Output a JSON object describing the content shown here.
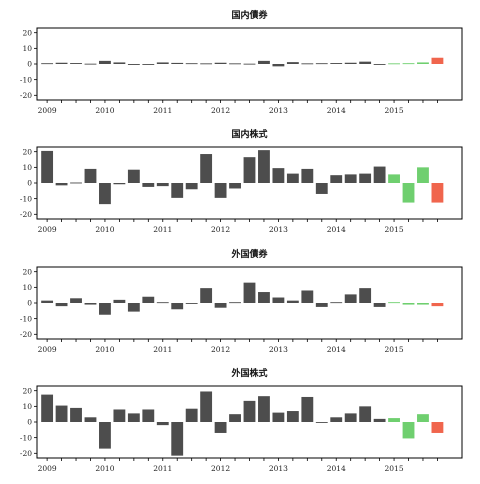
{
  "chart_data": [
    {
      "type": "bar",
      "title": "国内債券",
      "xlabel": "",
      "ylabel": "",
      "ylim": [
        -23,
        23
      ],
      "yticks": [
        20,
        10,
        0,
        -10,
        -20
      ],
      "year_labels": [
        "2009",
        "2010",
        "2011",
        "2012",
        "2013",
        "2014",
        "2015"
      ],
      "categories": [
        "2009Q1",
        "2009Q2",
        "2009Q3",
        "2009Q4",
        "2010Q1",
        "2010Q2",
        "2010Q3",
        "2010Q4",
        "2011Q1",
        "2011Q2",
        "2011Q3",
        "2011Q4",
        "2012Q1",
        "2012Q2",
        "2012Q3",
        "2012Q4",
        "2013Q1",
        "2013Q2",
        "2013Q3",
        "2013Q4",
        "2014Q1",
        "2014Q2",
        "2014Q3",
        "2014Q4",
        "2015Q1",
        "2015Q2",
        "2015Q3",
        "2015Q4"
      ],
      "values": [
        0.5,
        0.8,
        0.6,
        0.2,
        2.0,
        1.0,
        -0.6,
        -0.3,
        1.0,
        0.7,
        0.5,
        0.4,
        0.8,
        0.4,
        0.2,
        2.0,
        -1.5,
        1.2,
        0.4,
        0.5,
        0.6,
        0.8,
        1.5,
        -0.4,
        0.4,
        0.5,
        1.0,
        4.0
      ],
      "colors": [
        "#4d4d4d",
        "#4d4d4d",
        "#4d4d4d",
        "#4d4d4d",
        "#4d4d4d",
        "#4d4d4d",
        "#4d4d4d",
        "#4d4d4d",
        "#4d4d4d",
        "#4d4d4d",
        "#4d4d4d",
        "#4d4d4d",
        "#4d4d4d",
        "#4d4d4d",
        "#4d4d4d",
        "#4d4d4d",
        "#4d4d4d",
        "#4d4d4d",
        "#4d4d4d",
        "#4d4d4d",
        "#4d4d4d",
        "#4d4d4d",
        "#4d4d4d",
        "#4d4d4d",
        "#6fcf6f",
        "#6fcf6f",
        "#6fcf6f",
        "#f0654d"
      ]
    },
    {
      "type": "bar",
      "title": "国内株式",
      "xlabel": "",
      "ylabel": "",
      "ylim": [
        -23,
        23
      ],
      "yticks": [
        20,
        10,
        0,
        -10,
        -20
      ],
      "year_labels": [
        "2009",
        "2010",
        "2011",
        "2012",
        "2013",
        "2014",
        "2015"
      ],
      "categories": [
        "2009Q1",
        "2009Q2",
        "2009Q3",
        "2009Q4",
        "2010Q1",
        "2010Q2",
        "2010Q3",
        "2010Q4",
        "2011Q1",
        "2011Q2",
        "2011Q3",
        "2011Q4",
        "2012Q1",
        "2012Q2",
        "2012Q3",
        "2012Q4",
        "2013Q1",
        "2013Q2",
        "2013Q3",
        "2013Q4",
        "2014Q1",
        "2014Q2",
        "2014Q3",
        "2014Q4",
        "2015Q1",
        "2015Q2",
        "2015Q3",
        "2015Q4"
      ],
      "values": [
        20.5,
        -1.5,
        0.3,
        9.0,
        -13.5,
        -0.8,
        8.5,
        -2.5,
        -2.0,
        -9.5,
        -4.0,
        18.5,
        -9.5,
        -3.5,
        16.5,
        21.0,
        9.5,
        6.0,
        9.0,
        -7.0,
        5.0,
        5.5,
        6.0,
        10.5,
        5.5,
        -12.5,
        10.0,
        -12.5
      ],
      "colors": [
        "#4d4d4d",
        "#4d4d4d",
        "#4d4d4d",
        "#4d4d4d",
        "#4d4d4d",
        "#4d4d4d",
        "#4d4d4d",
        "#4d4d4d",
        "#4d4d4d",
        "#4d4d4d",
        "#4d4d4d",
        "#4d4d4d",
        "#4d4d4d",
        "#4d4d4d",
        "#4d4d4d",
        "#4d4d4d",
        "#4d4d4d",
        "#4d4d4d",
        "#4d4d4d",
        "#4d4d4d",
        "#4d4d4d",
        "#4d4d4d",
        "#4d4d4d",
        "#4d4d4d",
        "#6fcf6f",
        "#6fcf6f",
        "#6fcf6f",
        "#f0654d"
      ]
    },
    {
      "type": "bar",
      "title": "外国債券",
      "xlabel": "",
      "ylabel": "",
      "ylim": [
        -23,
        23
      ],
      "yticks": [
        20,
        10,
        0,
        -10,
        -20
      ],
      "year_labels": [
        "2009",
        "2010",
        "2011",
        "2012",
        "2013",
        "2014",
        "2015"
      ],
      "categories": [
        "2009Q1",
        "2009Q2",
        "2009Q3",
        "2009Q4",
        "2010Q1",
        "2010Q2",
        "2010Q3",
        "2010Q4",
        "2011Q1",
        "2011Q2",
        "2011Q3",
        "2011Q4",
        "2012Q1",
        "2012Q2",
        "2012Q3",
        "2012Q4",
        "2013Q1",
        "2013Q2",
        "2013Q3",
        "2013Q4",
        "2014Q1",
        "2014Q2",
        "2014Q3",
        "2014Q4",
        "2015Q1",
        "2015Q2",
        "2015Q3",
        "2015Q4"
      ],
      "values": [
        1.5,
        -2.0,
        3.0,
        -1.0,
        -7.5,
        2.0,
        -5.5,
        4.0,
        0.5,
        -4.0,
        -0.5,
        9.5,
        -3.0,
        0.5,
        13.0,
        7.0,
        3.5,
        1.5,
        8.0,
        -2.5,
        0.5,
        5.5,
        9.5,
        -2.5,
        0.5,
        -1.0,
        -1.0,
        -2.0
      ],
      "colors": [
        "#4d4d4d",
        "#4d4d4d",
        "#4d4d4d",
        "#4d4d4d",
        "#4d4d4d",
        "#4d4d4d",
        "#4d4d4d",
        "#4d4d4d",
        "#4d4d4d",
        "#4d4d4d",
        "#4d4d4d",
        "#4d4d4d",
        "#4d4d4d",
        "#4d4d4d",
        "#4d4d4d",
        "#4d4d4d",
        "#4d4d4d",
        "#4d4d4d",
        "#4d4d4d",
        "#4d4d4d",
        "#4d4d4d",
        "#4d4d4d",
        "#4d4d4d",
        "#4d4d4d",
        "#6fcf6f",
        "#6fcf6f",
        "#6fcf6f",
        "#f0654d"
      ]
    },
    {
      "type": "bar",
      "title": "外国株式",
      "xlabel": "",
      "ylabel": "",
      "ylim": [
        -23,
        23
      ],
      "yticks": [
        20,
        10,
        0,
        -10,
        -20
      ],
      "year_labels": [
        "2009",
        "2010",
        "2011",
        "2012",
        "2013",
        "2014",
        "2015"
      ],
      "categories": [
        "2009Q1",
        "2009Q2",
        "2009Q3",
        "2009Q4",
        "2010Q1",
        "2010Q2",
        "2010Q3",
        "2010Q4",
        "2011Q1",
        "2011Q2",
        "2011Q3",
        "2011Q4",
        "2012Q1",
        "2012Q2",
        "2012Q3",
        "2012Q4",
        "2013Q1",
        "2013Q2",
        "2013Q3",
        "2013Q4",
        "2014Q1",
        "2014Q2",
        "2014Q3",
        "2014Q4",
        "2015Q1",
        "2015Q2",
        "2015Q3",
        "2015Q4"
      ],
      "values": [
        17.5,
        10.5,
        9.0,
        3.0,
        -17.0,
        8.0,
        5.5,
        8.0,
        -2.0,
        -21.5,
        8.5,
        19.5,
        -7.0,
        5.0,
        13.5,
        16.5,
        6.0,
        7.0,
        16.0,
        -0.3,
        3.0,
        5.5,
        10.0,
        2.0,
        2.5,
        -10.5,
        5.0,
        -7.0
      ],
      "colors": [
        "#4d4d4d",
        "#4d4d4d",
        "#4d4d4d",
        "#4d4d4d",
        "#4d4d4d",
        "#4d4d4d",
        "#4d4d4d",
        "#4d4d4d",
        "#4d4d4d",
        "#4d4d4d",
        "#4d4d4d",
        "#4d4d4d",
        "#4d4d4d",
        "#4d4d4d",
        "#4d4d4d",
        "#4d4d4d",
        "#4d4d4d",
        "#4d4d4d",
        "#4d4d4d",
        "#4d4d4d",
        "#4d4d4d",
        "#4d4d4d",
        "#4d4d4d",
        "#4d4d4d",
        "#6fcf6f",
        "#6fcf6f",
        "#6fcf6f",
        "#f0654d"
      ]
    }
  ]
}
